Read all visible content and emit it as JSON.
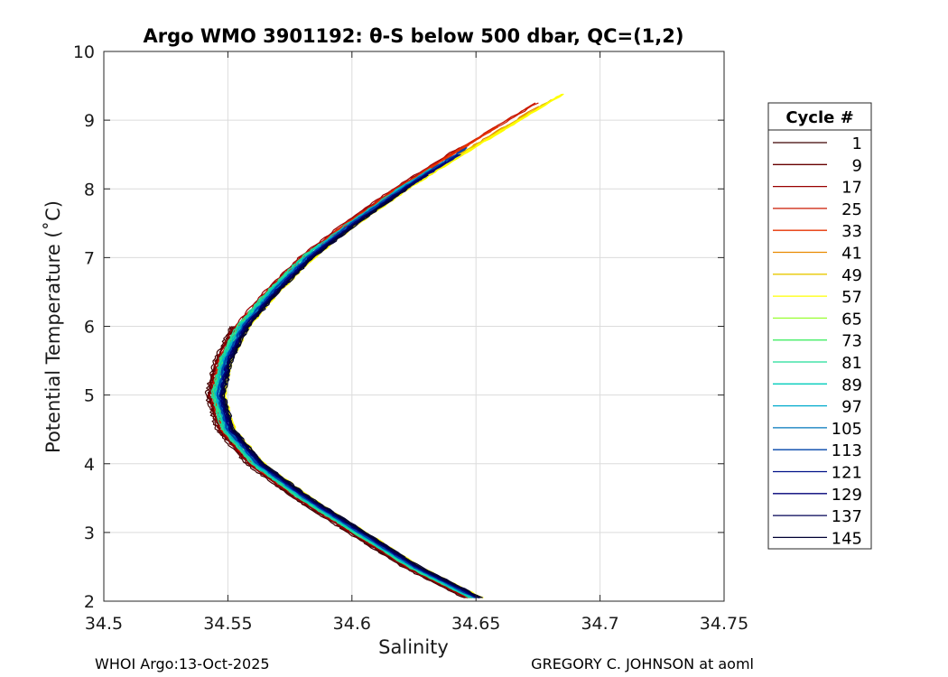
{
  "chart_data": {
    "type": "line",
    "title": "Argo WMO 3901192: θ-S below 500 dbar,  QC=(1,2)",
    "xlabel": "Salinity",
    "ylabel": "Potential Temperature (˚C)",
    "xlim": [
      34.5,
      34.75
    ],
    "ylim": [
      2,
      10
    ],
    "xticks": [
      "34.5",
      "34.55",
      "34.6",
      "34.65",
      "34.7",
      "34.75"
    ],
    "yticks": [
      "2",
      "3",
      "4",
      "5",
      "6",
      "7",
      "8",
      "9",
      "10"
    ],
    "grid": true,
    "legend": {
      "title": "Cycle #",
      "placement": "right-outside",
      "entries": [
        "1",
        "9",
        "17",
        "25",
        "33",
        "41",
        "49",
        "57",
        "65",
        "73",
        "81",
        "89",
        "97",
        "105",
        "113",
        "121",
        "129",
        "137",
        "145"
      ],
      "colors": [
        "#3d0000",
        "#660000",
        "#990000",
        "#cc1a00",
        "#e63300",
        "#e88a00",
        "#e8c800",
        "#ffff00",
        "#99ff33",
        "#44ee66",
        "#22dd99",
        "#00ccbb",
        "#00aacc",
        "#0077bb",
        "#0044aa",
        "#001188",
        "#000077",
        "#000055",
        "#000033"
      ]
    },
    "reference_profile": {
      "theta": [
        2.1,
        2.5,
        3.0,
        3.5,
        4.0,
        4.5,
        5.0,
        5.5,
        6.0,
        6.5,
        7.0,
        7.5,
        8.0,
        8.5,
        9.0
      ],
      "salinity": [
        34.647,
        34.625,
        34.603,
        34.581,
        34.562,
        34.55,
        34.546,
        34.549,
        34.556,
        34.568,
        34.582,
        34.6,
        34.62,
        34.642,
        34.665
      ]
    },
    "series": [
      {
        "cycle": "1",
        "offset": -0.004,
        "tmin": 2.05,
        "tmax": 6.0
      },
      {
        "cycle": "9",
        "offset": -0.0033,
        "tmin": 2.05,
        "tmax": 6.0
      },
      {
        "cycle": "17",
        "offset": -0.0028,
        "tmin": 2.05,
        "tmax": 8.6
      },
      {
        "cycle": "25",
        "offset": -0.0024,
        "tmin": 2.05,
        "tmax": 9.25
      },
      {
        "cycle": "33",
        "offset": -0.002,
        "tmin": 2.05,
        "tmax": 8.9
      },
      {
        "cycle": "41",
        "offset": 0.0012,
        "tmin": 2.05,
        "tmax": 9.2
      },
      {
        "cycle": "49",
        "offset": 0.0018,
        "tmin": 2.05,
        "tmax": 9.3
      },
      {
        "cycle": "57",
        "offset": 0.003,
        "tmin": 2.05,
        "tmax": 9.38
      },
      {
        "cycle": "65",
        "offset": -0.0012,
        "tmin": 2.05,
        "tmax": 6.6
      },
      {
        "cycle": "73",
        "offset": -0.0016,
        "tmin": 2.05,
        "tmax": 6.8
      },
      {
        "cycle": "81",
        "offset": -0.002,
        "tmin": 2.05,
        "tmax": 7.2
      },
      {
        "cycle": "89",
        "offset": -0.0008,
        "tmin": 2.05,
        "tmax": 8.3
      },
      {
        "cycle": "97",
        "offset": -0.0004,
        "tmin": 2.05,
        "tmax": 8.4
      },
      {
        "cycle": "105",
        "offset": 0.0,
        "tmin": 2.05,
        "tmax": 8.5
      },
      {
        "cycle": "113",
        "offset": 0.0005,
        "tmin": 2.05,
        "tmax": 8.6
      },
      {
        "cycle": "121",
        "offset": 0.0009,
        "tmin": 2.05,
        "tmax": 8.5
      },
      {
        "cycle": "129",
        "offset": 0.0014,
        "tmin": 2.05,
        "tmax": 8.4
      },
      {
        "cycle": "137",
        "offset": 0.0019,
        "tmin": 2.05,
        "tmax": 8.2
      },
      {
        "cycle": "145",
        "offset": 0.0024,
        "tmin": 2.05,
        "tmax": 8.0
      }
    ]
  },
  "footer": {
    "left": "WHOI Argo:13-Oct-2025",
    "right": "GREGORY C. JOHNSON at aoml"
  }
}
